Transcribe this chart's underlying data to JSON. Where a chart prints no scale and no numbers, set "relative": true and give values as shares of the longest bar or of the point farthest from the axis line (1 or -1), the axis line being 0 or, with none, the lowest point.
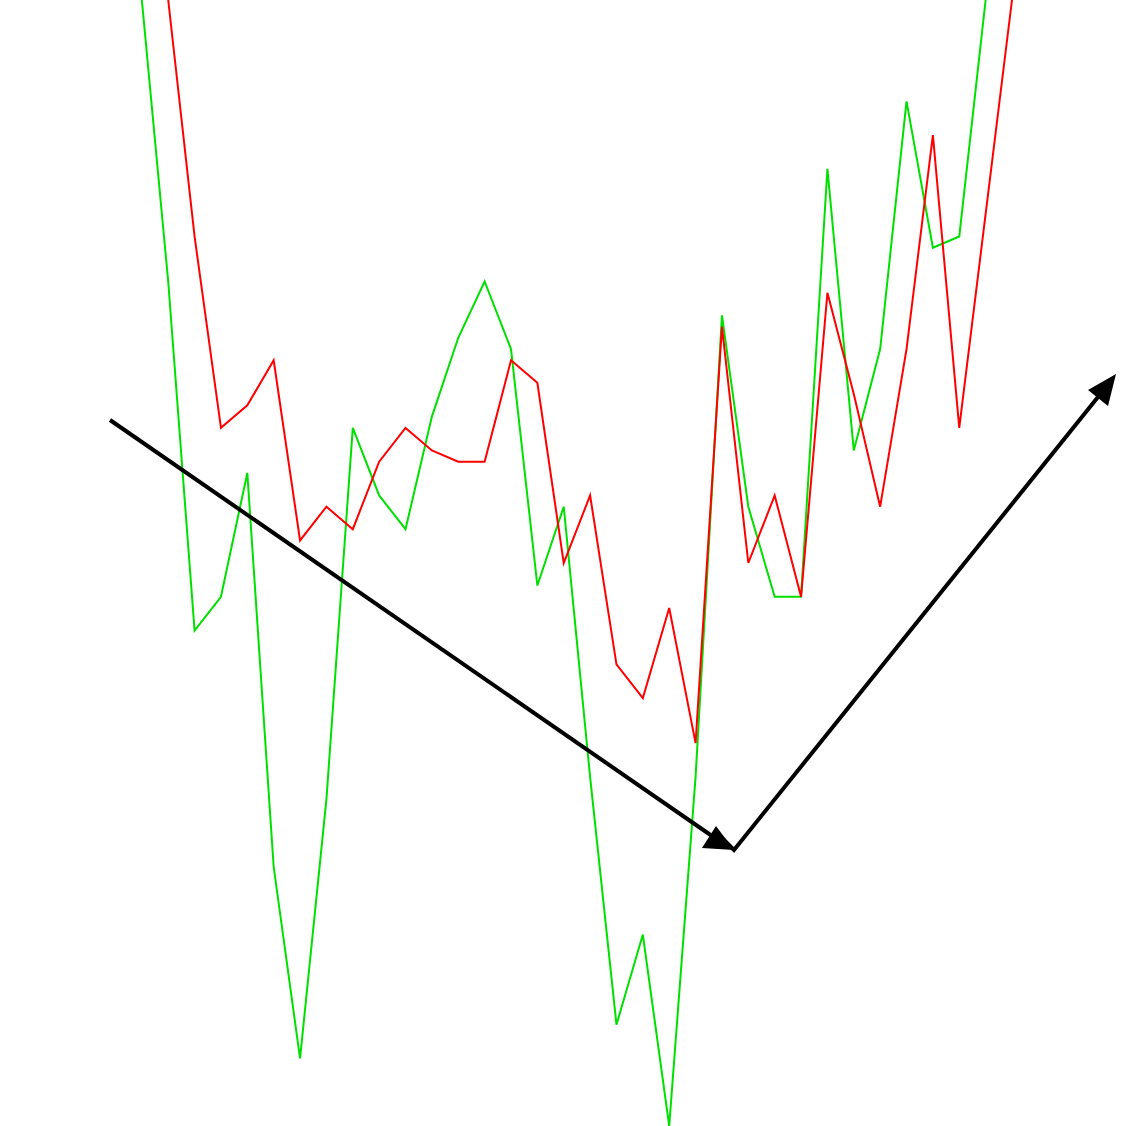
{
  "chart_data": {
    "type": "line",
    "relative": true,
    "categories": [
      null,
      null,
      null,
      null,
      null,
      null,
      null,
      null,
      null,
      null,
      null,
      null,
      null,
      null,
      null,
      null,
      null,
      null,
      null,
      null,
      null,
      null,
      null,
      null,
      null,
      null,
      null,
      null,
      null,
      null,
      null,
      null,
      null,
      null,
      null,
      null,
      null,
      null,
      null
    ],
    "series": [
      {
        "color": "#00e000",
        "values": [
          null,
          null,
          null,
          null,
          null,
          1,
          0.75,
          0.44,
          0.47,
          0.58,
          0.23,
          0.06,
          0.29,
          0.62,
          0.56,
          0.53,
          0.63,
          0.7,
          0.75,
          0.69,
          0.48,
          0.55,
          0.31,
          0.09,
          0.17,
          0,
          0.31,
          0.72,
          0.55,
          0.47,
          0.47,
          0.85,
          0.6,
          0.69,
          0.91,
          0.78,
          0.79,
          1,
          null
        ]
      },
      {
        "color": "#ff0000",
        "values": [
          null,
          null,
          null,
          null,
          null,
          null,
          1,
          0.79,
          0.62,
          0.64,
          0.68,
          0.52,
          0.55,
          0.53,
          0.59,
          0.62,
          0.6,
          0.59,
          0.59,
          0.68,
          0.66,
          0.5,
          0.56,
          0.41,
          0.38,
          0.46,
          0.34,
          0.71,
          0.5,
          0.56,
          0.47,
          0.74,
          0.65,
          0.55,
          0.69,
          0.88,
          0.62,
          0.81,
          1
        ]
      }
    ]
  }
}
